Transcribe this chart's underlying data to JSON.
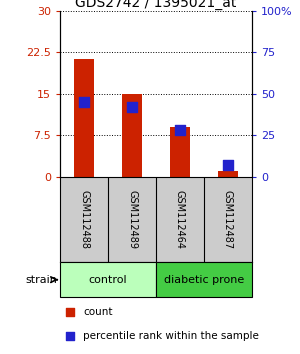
{
  "title": "GDS2742 / 1395021_at",
  "samples": [
    "GSM112488",
    "GSM112489",
    "GSM112464",
    "GSM112487"
  ],
  "count_values": [
    21.2,
    15.0,
    9.0,
    1.0
  ],
  "percentile_values": [
    45.0,
    42.0,
    28.0,
    7.0
  ],
  "ylim_left": [
    0,
    30
  ],
  "ylim_right": [
    0,
    100
  ],
  "yticks_left": [
    0,
    7.5,
    15,
    22.5,
    30
  ],
  "yticks_right": [
    0,
    25,
    50,
    75,
    100
  ],
  "ytick_labels_left": [
    "0",
    "7.5",
    "15",
    "22.5",
    "30"
  ],
  "ytick_labels_right": [
    "0",
    "25",
    "50",
    "75",
    "100%"
  ],
  "bar_color": "#cc2200",
  "square_color": "#2222cc",
  "control_color": "#bbffbb",
  "diabetic_color": "#44cc44",
  "sample_box_color": "#cccccc",
  "strain_label": "strain",
  "legend_count_label": "count",
  "legend_pct_label": "percentile rank within the sample",
  "background_color": "#ffffff",
  "title_fontsize": 10,
  "tick_fontsize": 8,
  "label_fontsize": 8,
  "legend_fontsize": 7.5
}
